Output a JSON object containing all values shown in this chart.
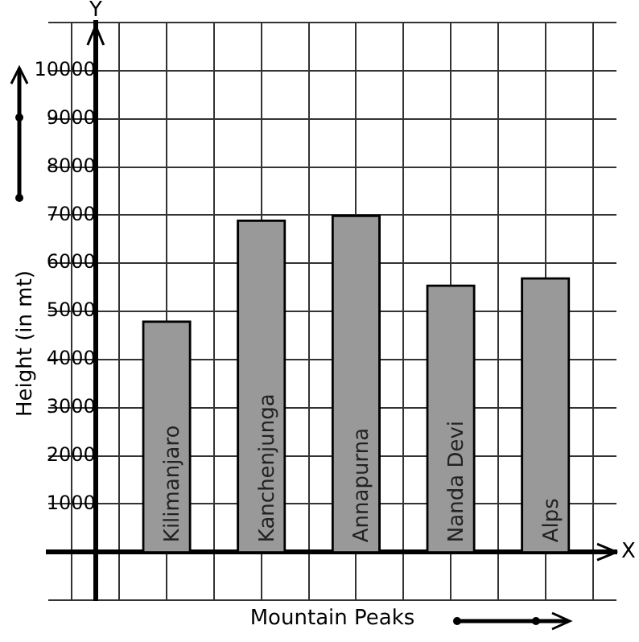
{
  "chart_data": {
    "type": "bar",
    "xlabel": "Mountain Peaks",
    "ylabel": "Height (in mt)",
    "categories": [
      "Kilimanjaro",
      "Kanchenjunga",
      "Annapurna",
      "Nanda Devi",
      "Alps"
    ],
    "values": [
      4800,
      6900,
      7000,
      5550,
      5700
    ],
    "color": "#999999",
    "ylim": [
      -1000,
      11000
    ],
    "yticks": [
      {
        "value": -1000,
        "label": null
      },
      {
        "value": 0,
        "label": null
      },
      1000,
      2000,
      3000,
      4000,
      5000,
      6000,
      7000,
      8000,
      9000,
      10000,
      {
        "value": 11000,
        "label": null
      }
    ],
    "annotations": [
      "Y",
      "X"
    ],
    "grid": true,
    "legend": false
  }
}
